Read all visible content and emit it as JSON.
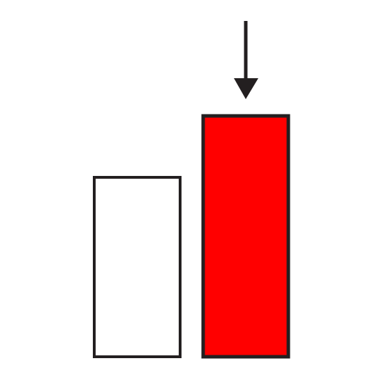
{
  "diagram": {
    "shapes": [
      {
        "name": "white-box",
        "fill": "#ffffff",
        "stroke": "#231f20"
      },
      {
        "name": "red-box",
        "fill": "#ff0000",
        "stroke": "#231f20"
      }
    ],
    "arrow": {
      "icon": "arrow-down-icon",
      "color": "#231f20",
      "points_to": "red-box"
    }
  }
}
